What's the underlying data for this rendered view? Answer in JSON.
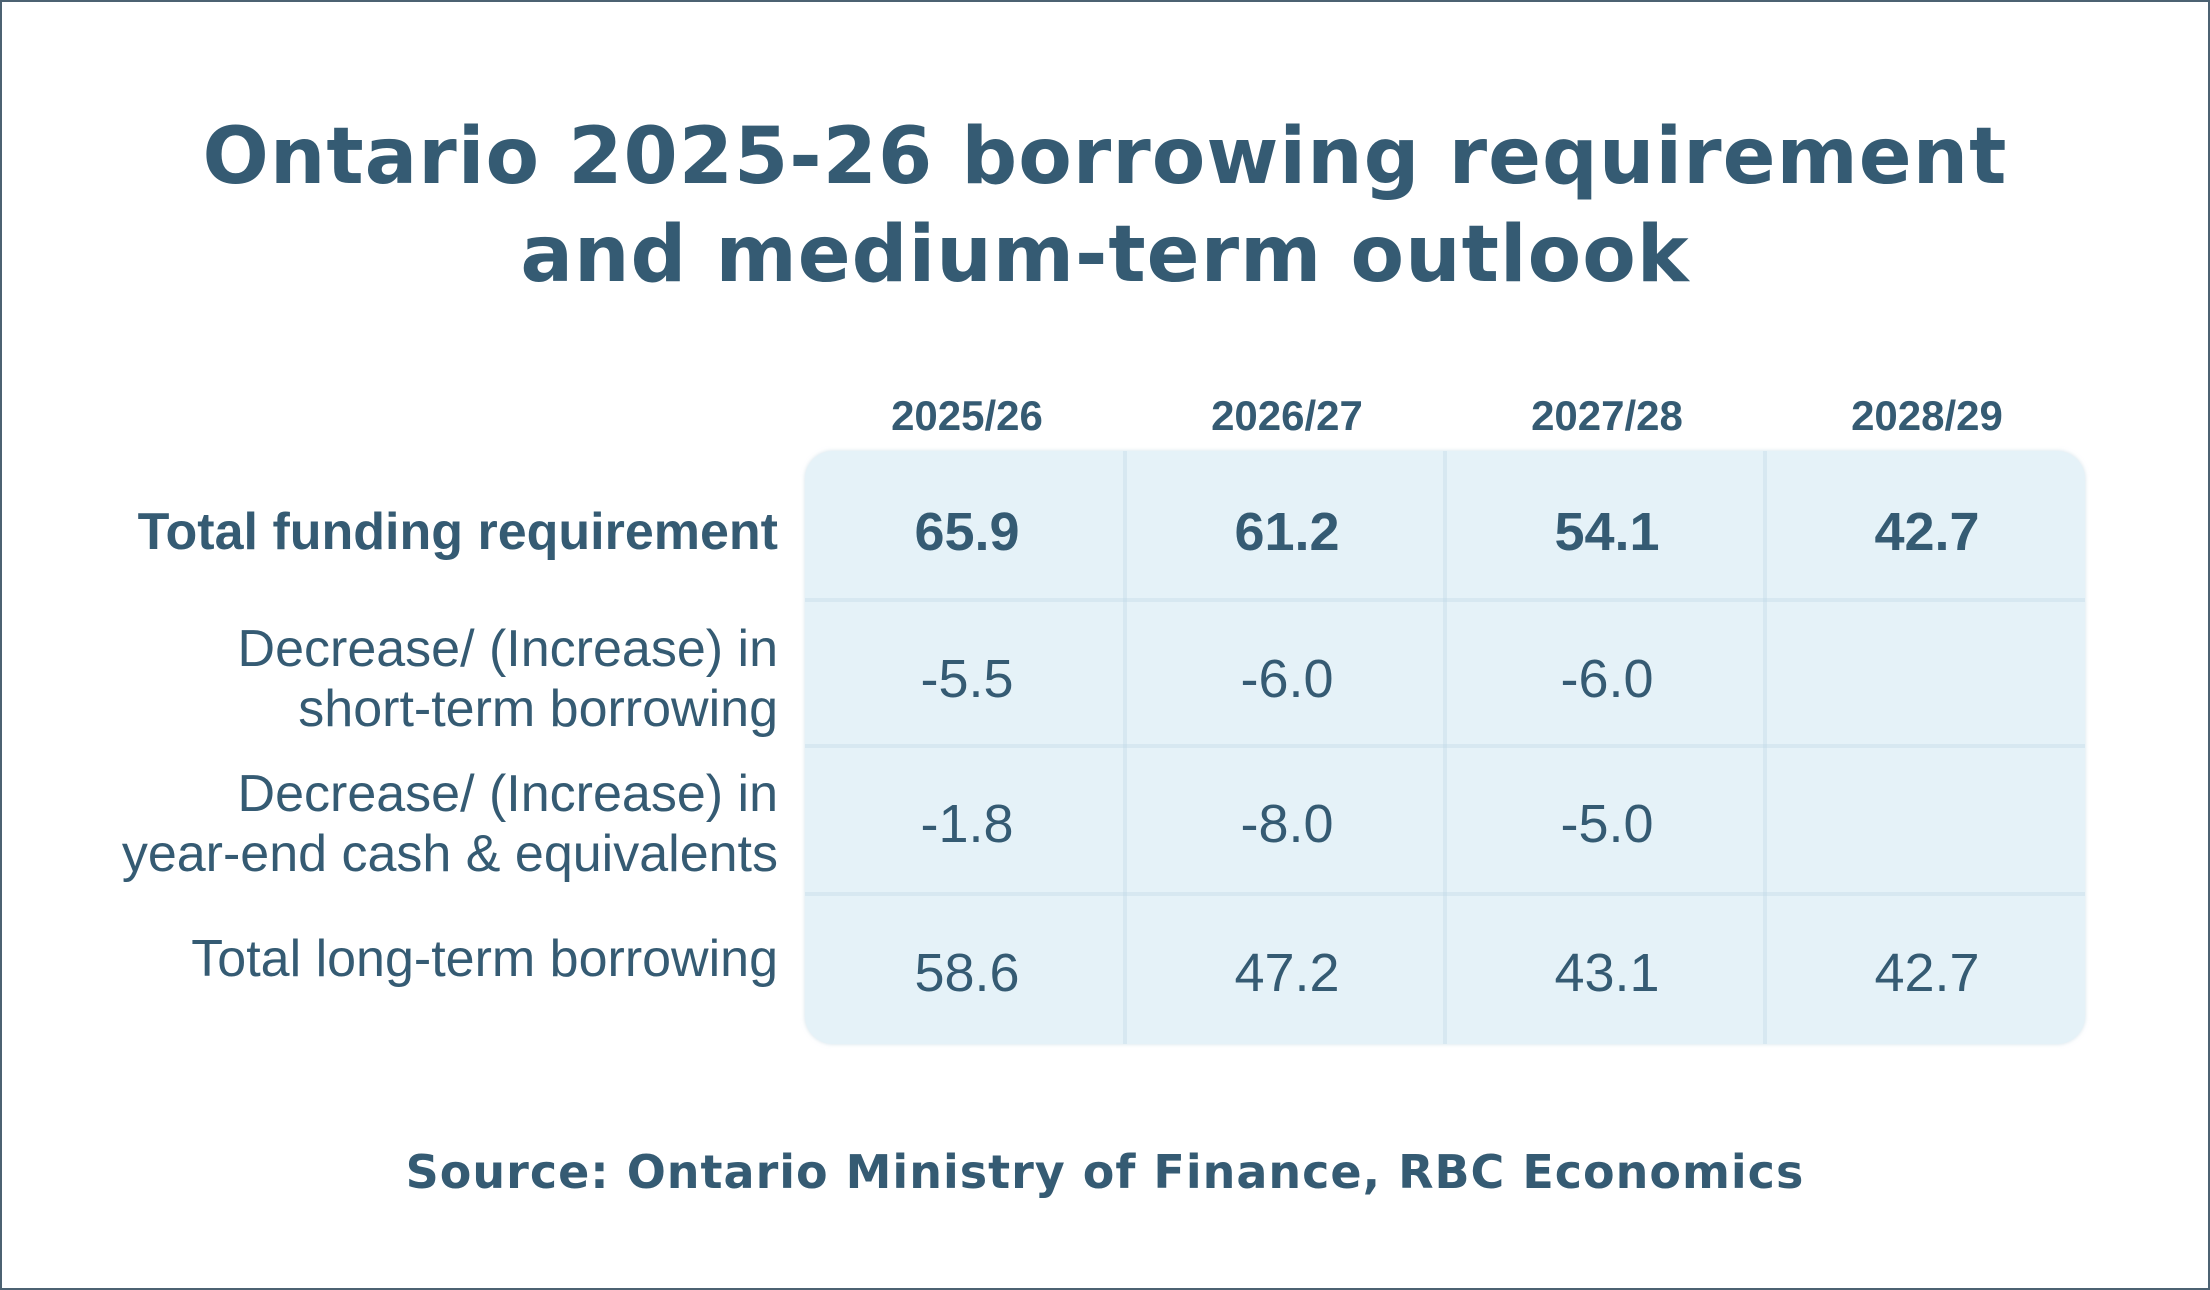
{
  "title": {
    "line1": "Ontario 2025-26 borrowing requirement",
    "line2": "and medium-term outlook"
  },
  "source": "Source: Ontario Ministry of Finance, RBC Economics",
  "chart_data": {
    "type": "table",
    "columns": [
      "2025/26",
      "2026/27",
      "2027/28",
      "2028/29"
    ],
    "rows": [
      {
        "label_lines": [
          "Total funding requirement"
        ],
        "bold": true,
        "values": [
          "65.9",
          "61.2",
          "54.1",
          "42.7"
        ]
      },
      {
        "label_lines": [
          "Decrease/ (Increase) in",
          "short-term borrowing"
        ],
        "bold": false,
        "values": [
          "-5.5",
          "-6.0",
          "-6.0",
          ""
        ]
      },
      {
        "label_lines": [
          "Decrease/ (Increase) in",
          "year-end cash & equivalents"
        ],
        "bold": false,
        "values": [
          "-1.8",
          "-8.0",
          "-5.0",
          ""
        ]
      },
      {
        "label_lines": [
          "Total long-term borrowing"
        ],
        "bold": false,
        "values": [
          "58.6",
          "47.2",
          "43.1",
          "42.7"
        ]
      }
    ]
  }
}
